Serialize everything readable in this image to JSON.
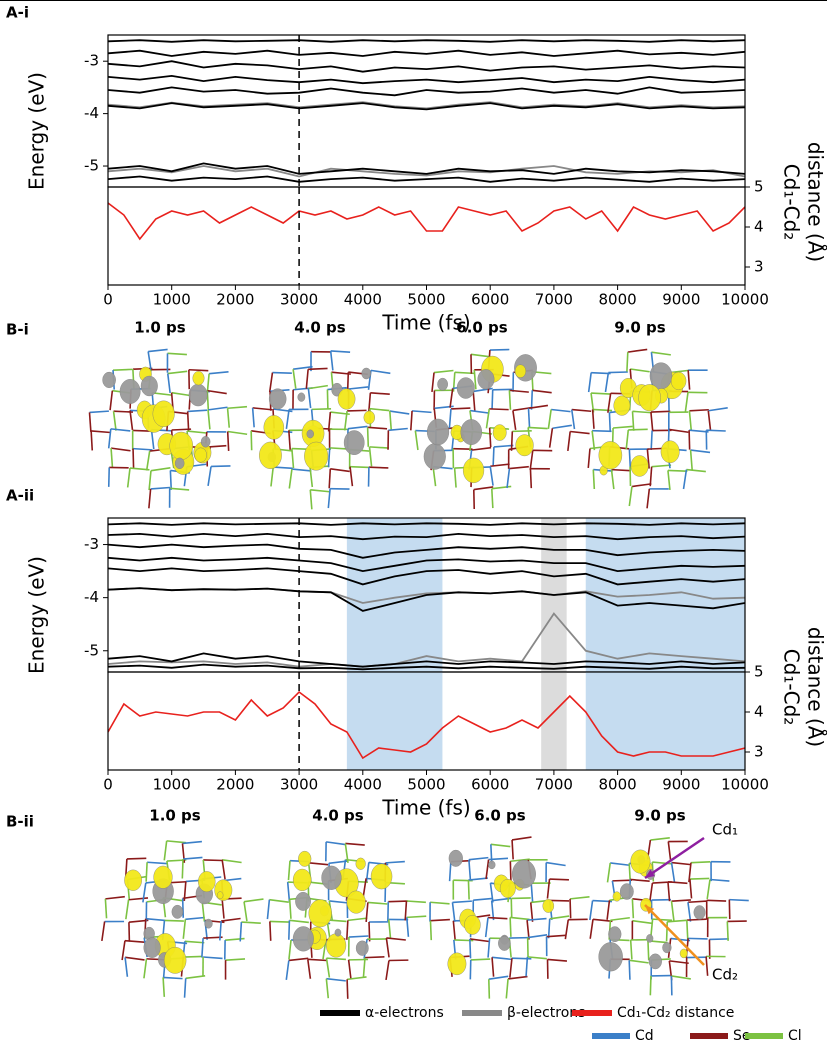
{
  "chart_data": [
    {
      "type": "line",
      "panel_label": "A-i",
      "ylabel": "Energy (eV)",
      "x": [
        0,
        500,
        1000,
        1500,
        2000,
        2500,
        3000,
        3500,
        4000,
        4500,
        5000,
        5500,
        6000,
        6500,
        7000,
        7500,
        8000,
        8500,
        9000,
        9500,
        10000
      ],
      "xlim": [
        0,
        10000
      ],
      "ylim": [
        -5.4,
        -2.5
      ],
      "yticks": [
        -3,
        -4,
        -5
      ],
      "vline": 3000,
      "series": [
        {
          "name": "α-electrons",
          "color": "#000000",
          "values": [
            -2.62,
            -2.6,
            -2.63,
            -2.6,
            -2.62,
            -2.61,
            -2.6,
            -2.63,
            -2.6,
            -2.62,
            -2.6,
            -2.61,
            -2.63,
            -2.6,
            -2.62,
            -2.6,
            -2.61,
            -2.63,
            -2.6,
            -2.62,
            -2.6
          ]
        },
        {
          "name": "α-electrons",
          "color": "#000000",
          "values": [
            -2.85,
            -2.8,
            -2.9,
            -2.82,
            -2.86,
            -2.8,
            -2.88,
            -2.84,
            -2.9,
            -2.82,
            -2.86,
            -2.8,
            -2.88,
            -2.83,
            -2.9,
            -2.85,
            -2.8,
            -2.87,
            -2.84,
            -2.88,
            -2.82
          ]
        },
        {
          "name": "α-electrons",
          "color": "#000000",
          "values": [
            -3.05,
            -3.1,
            -3.0,
            -3.12,
            -3.05,
            -3.08,
            -3.15,
            -3.1,
            -3.2,
            -3.12,
            -3.15,
            -3.1,
            -3.18,
            -3.12,
            -3.1,
            -3.16,
            -3.12,
            -3.08,
            -3.14,
            -3.1,
            -3.12
          ]
        },
        {
          "name": "α-electrons",
          "color": "#000000",
          "values": [
            -3.3,
            -3.35,
            -3.28,
            -3.38,
            -3.3,
            -3.36,
            -3.4,
            -3.35,
            -3.42,
            -3.38,
            -3.35,
            -3.4,
            -3.36,
            -3.32,
            -3.4,
            -3.35,
            -3.38,
            -3.3,
            -3.36,
            -3.4,
            -3.35
          ]
        },
        {
          "name": "α-electrons",
          "color": "#000000",
          "values": [
            -3.55,
            -3.6,
            -3.5,
            -3.58,
            -3.55,
            -3.62,
            -3.6,
            -3.52,
            -3.6,
            -3.65,
            -3.55,
            -3.6,
            -3.58,
            -3.52,
            -3.6,
            -3.55,
            -3.62,
            -3.5,
            -3.6,
            -3.58,
            -3.55
          ]
        },
        {
          "name": "β-electrons",
          "color": "#888888",
          "values": [
            -3.83,
            -3.88,
            -3.79,
            -3.86,
            -3.83,
            -3.8,
            -3.88,
            -3.83,
            -3.78,
            -3.86,
            -3.9,
            -3.83,
            -3.78,
            -3.88,
            -3.83,
            -3.86,
            -3.8,
            -3.88,
            -3.84,
            -3.88,
            -3.86
          ]
        },
        {
          "name": "α-electrons",
          "color": "#000000",
          "values": [
            -3.85,
            -3.9,
            -3.8,
            -3.88,
            -3.85,
            -3.82,
            -3.9,
            -3.85,
            -3.8,
            -3.88,
            -3.92,
            -3.85,
            -3.8,
            -3.9,
            -3.85,
            -3.88,
            -3.82,
            -3.9,
            -3.86,
            -3.9,
            -3.88
          ]
        },
        {
          "name": "β-electrons",
          "color": "#888888",
          "values": [
            -5.1,
            -5.05,
            -5.12,
            -5.0,
            -5.1,
            -5.05,
            -5.2,
            -5.05,
            -5.1,
            -5.15,
            -5.18,
            -5.1,
            -5.12,
            -5.05,
            -5.0,
            -5.12,
            -5.15,
            -5.1,
            -5.12,
            -5.08,
            -5.2
          ]
        },
        {
          "name": "α-electrons",
          "color": "#000000",
          "values": [
            -5.05,
            -5.0,
            -5.1,
            -4.95,
            -5.05,
            -5.0,
            -5.15,
            -5.1,
            -5.05,
            -5.1,
            -5.15,
            -5.05,
            -5.1,
            -5.08,
            -5.15,
            -5.05,
            -5.1,
            -5.12,
            -5.08,
            -5.1,
            -5.15
          ]
        },
        {
          "name": "α-electrons",
          "color": "#000000",
          "values": [
            -5.25,
            -5.2,
            -5.28,
            -5.22,
            -5.25,
            -5.2,
            -5.3,
            -5.25,
            -5.22,
            -5.28,
            -5.25,
            -5.22,
            -5.3,
            -5.24,
            -5.28,
            -5.22,
            -5.26,
            -5.3,
            -5.24,
            -5.28,
            -5.25
          ]
        }
      ]
    },
    {
      "type": "line",
      "xlabel": "Time (fs)",
      "y2label": [
        "Cd₁-Cd₂",
        "distance (Å)"
      ],
      "x": [
        0,
        250,
        500,
        750,
        1000,
        1250,
        1500,
        1750,
        2000,
        2250,
        2500,
        2750,
        3000,
        3250,
        3500,
        3750,
        4000,
        4250,
        4500,
        4750,
        5000,
        5250,
        5500,
        5750,
        6000,
        6250,
        6500,
        6750,
        7000,
        7250,
        7500,
        7750,
        8000,
        8250,
        8500,
        8750,
        9000,
        9250,
        9500,
        9750,
        10000
      ],
      "xlim": [
        0,
        10000
      ],
      "xticks": [
        0,
        1000,
        2000,
        3000,
        4000,
        5000,
        6000,
        7000,
        8000,
        9000,
        10000
      ],
      "ylim": [
        2.55,
        5
      ],
      "yticks": [
        5,
        4,
        3
      ],
      "vline": 3000,
      "series": [
        {
          "name": "Cd₁-Cd₂ distance",
          "color": "#e8211d",
          "values": [
            4.6,
            4.3,
            3.7,
            4.2,
            4.4,
            4.3,
            4.4,
            4.1,
            4.3,
            4.5,
            4.3,
            4.1,
            4.4,
            4.3,
            4.4,
            4.2,
            4.3,
            4.5,
            4.3,
            4.4,
            3.9,
            3.9,
            4.5,
            4.4,
            4.3,
            4.4,
            3.9,
            4.1,
            4.4,
            4.5,
            4.2,
            4.4,
            3.9,
            4.5,
            4.3,
            4.2,
            4.3,
            4.4,
            3.9,
            4.1,
            4.5
          ]
        }
      ]
    },
    {
      "type": "line",
      "panel_label": "A-ii",
      "ylabel": "Energy (eV)",
      "x": [
        0,
        500,
        1000,
        1500,
        2000,
        2500,
        3000,
        3500,
        4000,
        4500,
        5000,
        5500,
        6000,
        6500,
        7000,
        7500,
        8000,
        8500,
        9000,
        9500,
        10000
      ],
      "xlim": [
        0,
        10000
      ],
      "ylim": [
        -5.4,
        -2.5
      ],
      "yticks": [
        -3,
        -4,
        -5
      ],
      "vline": 3000,
      "spans": [
        {
          "start": 3750,
          "end": 5250,
          "color": "#c5dcf0"
        },
        {
          "start": 6800,
          "end": 7200,
          "color": "#dcdcdc"
        },
        {
          "start": 7500,
          "end": 10000,
          "color": "#c5dcf0"
        }
      ],
      "series": [
        {
          "name": "α-electrons",
          "color": "#000000",
          "values": [
            -2.62,
            -2.6,
            -2.63,
            -2.6,
            -2.62,
            -2.61,
            -2.6,
            -2.63,
            -2.6,
            -2.62,
            -2.6,
            -2.61,
            -2.63,
            -2.6,
            -2.62,
            -2.6,
            -2.61,
            -2.63,
            -2.6,
            -2.62,
            -2.6
          ]
        },
        {
          "name": "α-electrons",
          "color": "#000000",
          "values": [
            -2.82,
            -2.8,
            -2.85,
            -2.8,
            -2.84,
            -2.8,
            -2.86,
            -2.84,
            -2.9,
            -2.85,
            -2.86,
            -2.8,
            -2.84,
            -2.82,
            -2.86,
            -2.84,
            -2.9,
            -2.86,
            -2.84,
            -2.88,
            -2.85
          ]
        },
        {
          "name": "α-electrons",
          "color": "#000000",
          "values": [
            -3.0,
            -3.05,
            -3.0,
            -3.05,
            -3.02,
            -3.0,
            -3.08,
            -3.1,
            -3.25,
            -3.15,
            -3.1,
            -3.05,
            -3.08,
            -3.05,
            -3.1,
            -3.1,
            -3.2,
            -3.15,
            -3.12,
            -3.1,
            -3.12
          ]
        },
        {
          "name": "α-electrons",
          "color": "#000000",
          "values": [
            -3.25,
            -3.3,
            -3.25,
            -3.3,
            -3.28,
            -3.25,
            -3.3,
            -3.35,
            -3.5,
            -3.4,
            -3.3,
            -3.28,
            -3.32,
            -3.3,
            -3.35,
            -3.35,
            -3.5,
            -3.45,
            -3.4,
            -3.42,
            -3.4
          ]
        },
        {
          "name": "α-electrons",
          "color": "#000000",
          "values": [
            -3.45,
            -3.5,
            -3.45,
            -3.5,
            -3.48,
            -3.45,
            -3.5,
            -3.55,
            -3.75,
            -3.6,
            -3.5,
            -3.48,
            -3.55,
            -3.5,
            -3.6,
            -3.55,
            -3.75,
            -3.7,
            -3.65,
            -3.7,
            -3.65
          ]
        },
        {
          "name": "β-electrons",
          "color": "#888888",
          "values": [
            -3.85,
            -3.82,
            -3.86,
            -3.84,
            -3.85,
            -3.83,
            -3.88,
            -3.9,
            -4.1,
            -4.0,
            -3.92,
            -3.9,
            -3.92,
            -3.88,
            -3.95,
            -3.88,
            -3.98,
            -3.95,
            -3.9,
            -4.02,
            -4.0
          ]
        },
        {
          "name": "α-electrons",
          "color": "#000000",
          "values": [
            -3.85,
            -3.82,
            -3.86,
            -3.84,
            -3.85,
            -3.83,
            -3.88,
            -3.9,
            -4.25,
            -4.1,
            -3.95,
            -3.9,
            -3.92,
            -3.88,
            -3.95,
            -3.9,
            -4.15,
            -4.1,
            -4.15,
            -4.2,
            -4.1
          ]
        },
        {
          "name": "β-electrons",
          "color": "#888888",
          "values": [
            -5.25,
            -5.2,
            -5.22,
            -5.2,
            -5.25,
            -5.22,
            -5.3,
            -5.25,
            -5.3,
            -5.25,
            -5.1,
            -5.2,
            -5.15,
            -5.2,
            -4.3,
            -5.0,
            -5.15,
            -5.05,
            -5.1,
            -5.15,
            -5.2
          ]
        },
        {
          "name": "α-electrons",
          "color": "#000000",
          "values": [
            -5.15,
            -5.1,
            -5.2,
            -5.05,
            -5.15,
            -5.1,
            -5.2,
            -5.25,
            -5.3,
            -5.25,
            -5.2,
            -5.25,
            -5.2,
            -5.22,
            -5.25,
            -5.2,
            -5.22,
            -5.25,
            -5.2,
            -5.25,
            -5.22
          ]
        },
        {
          "name": "α-electrons",
          "color": "#000000",
          "values": [
            -5.3,
            -5.28,
            -5.32,
            -5.26,
            -5.3,
            -5.28,
            -5.33,
            -5.32,
            -5.35,
            -5.32,
            -5.3,
            -5.33,
            -5.3,
            -5.32,
            -5.34,
            -5.3,
            -5.32,
            -5.34,
            -5.3,
            -5.33,
            -5.32
          ]
        }
      ]
    },
    {
      "type": "line",
      "xlabel": "Time (fs)",
      "y2label": [
        "Cd₁-Cd₂",
        "distance (Å)"
      ],
      "x": [
        0,
        250,
        500,
        750,
        1000,
        1250,
        1500,
        1750,
        2000,
        2250,
        2500,
        2750,
        3000,
        3250,
        3500,
        3750,
        4000,
        4250,
        4500,
        4750,
        5000,
        5250,
        5500,
        5750,
        6000,
        6250,
        6500,
        6750,
        7000,
        7250,
        7500,
        7750,
        8000,
        8250,
        8500,
        8750,
        9000,
        9250,
        9500,
        9750,
        10000
      ],
      "xlim": [
        0,
        10000
      ],
      "xticks": [
        0,
        1000,
        2000,
        3000,
        4000,
        5000,
        6000,
        7000,
        8000,
        9000,
        10000
      ],
      "ylim": [
        2.55,
        5
      ],
      "yticks": [
        5,
        4,
        3
      ],
      "vline": 3000,
      "spans": [
        {
          "start": 3750,
          "end": 5250,
          "color": "#c5dcf0"
        },
        {
          "start": 6800,
          "end": 7200,
          "color": "#dcdcdc"
        },
        {
          "start": 7500,
          "end": 10000,
          "color": "#c5dcf0"
        }
      ],
      "series": [
        {
          "name": "Cd₁-Cd₂ distance",
          "color": "#e8211d",
          "values": [
            3.5,
            4.2,
            3.9,
            4.0,
            3.95,
            3.9,
            4.0,
            4.0,
            3.8,
            4.3,
            3.9,
            4.1,
            4.5,
            4.2,
            3.7,
            3.5,
            2.85,
            3.1,
            3.05,
            3.0,
            3.2,
            3.6,
            3.9,
            3.7,
            3.5,
            3.6,
            3.8,
            3.6,
            4.0,
            4.4,
            4.0,
            3.4,
            3.0,
            2.9,
            3.0,
            3.0,
            2.9,
            2.9,
            2.9,
            3.0,
            3.1
          ]
        }
      ]
    }
  ],
  "snapshots": [
    {
      "label": "B-i",
      "times": [
        "1.0 ps",
        "4.0 ps",
        "6.0 ps",
        "9.0 ps"
      ]
    },
    {
      "label": "B-ii",
      "times": [
        "1.0 ps",
        "4.0 ps",
        "6.0 ps",
        "9.0 ps"
      ],
      "annotations": [
        {
          "text": "Cd₁",
          "color": "#8e1fa0"
        },
        {
          "text": "Cd₂",
          "color": "#f0901e"
        }
      ]
    }
  ],
  "legend": {
    "lines": [
      {
        "name": "α-electrons",
        "color": "#000000"
      },
      {
        "name": "β-electrons",
        "color": "#888888"
      },
      {
        "name": "Cd₁-Cd₂ distance",
        "color": "#e8211d"
      }
    ],
    "atoms": [
      {
        "name": "Cd",
        "color": "#3b7fc8"
      },
      {
        "name": "Se",
        "color": "#8b1a1a"
      },
      {
        "name": "Cl",
        "color": "#7cc242"
      }
    ]
  }
}
